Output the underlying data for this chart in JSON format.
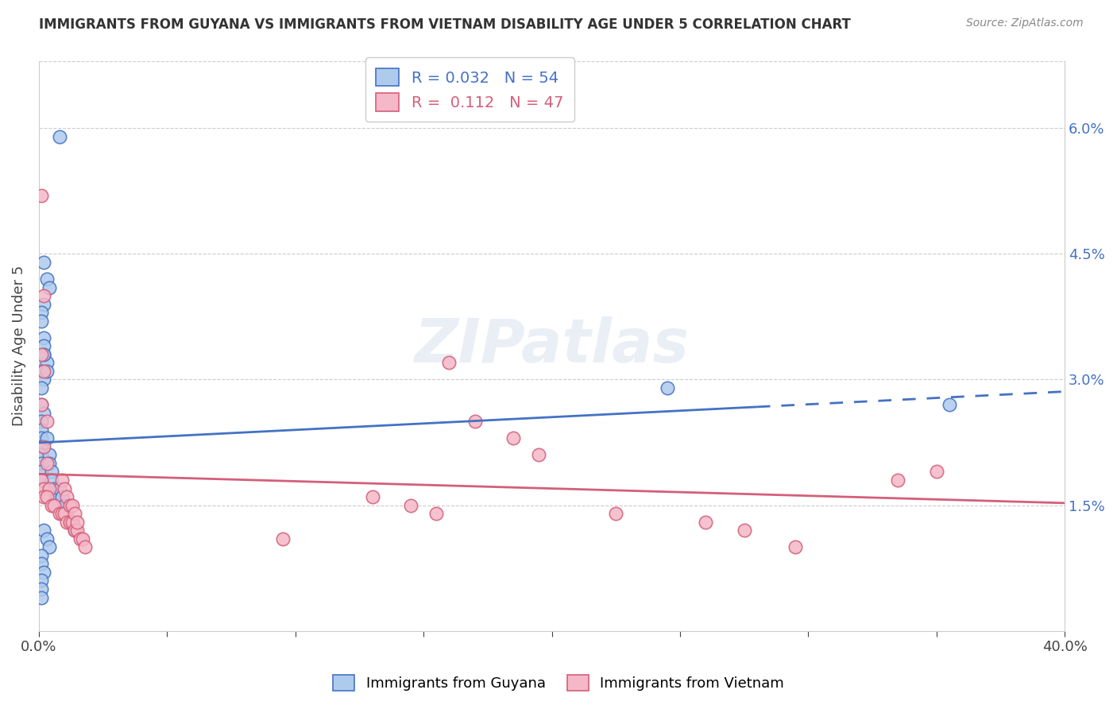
{
  "title": "IMMIGRANTS FROM GUYANA VS IMMIGRANTS FROM VIETNAM DISABILITY AGE UNDER 5 CORRELATION CHART",
  "source": "Source: ZipAtlas.com",
  "ylabel": "Disability Age Under 5",
  "xlim": [
    0.0,
    0.4
  ],
  "ylim": [
    0.0,
    0.068
  ],
  "xticks": [
    0.0,
    0.05,
    0.1,
    0.15,
    0.2,
    0.25,
    0.3,
    0.35,
    0.4
  ],
  "ytick_positions": [
    0.015,
    0.03,
    0.045,
    0.06
  ],
  "ytick_labels": [
    "1.5%",
    "3.0%",
    "4.5%",
    "6.0%"
  ],
  "legend_guyana_r": "0.032",
  "legend_guyana_n": "54",
  "legend_vietnam_r": "0.112",
  "legend_vietnam_n": "47",
  "guyana_color": "#aecbee",
  "guyana_line_color": "#4472c4",
  "vietnam_color": "#f5b8c8",
  "vietnam_line_color": "#d45f7a",
  "watermark": "ZIPatlas",
  "guyana_x": [
    0.008,
    0.002,
    0.003,
    0.004,
    0.002,
    0.001,
    0.001,
    0.002,
    0.002,
    0.003,
    0.001,
    0.002,
    0.001,
    0.001,
    0.002,
    0.001,
    0.001,
    0.001,
    0.001,
    0.001,
    0.001,
    0.001,
    0.001,
    0.001,
    0.001,
    0.002,
    0.002,
    0.003,
    0.003,
    0.004,
    0.004,
    0.005,
    0.005,
    0.006,
    0.007,
    0.007,
    0.008,
    0.009,
    0.01,
    0.011,
    0.012,
    0.013,
    0.014,
    0.002,
    0.003,
    0.004,
    0.001,
    0.001,
    0.002,
    0.001,
    0.001,
    0.001,
    0.245,
    0.355
  ],
  "guyana_y": [
    0.059,
    0.044,
    0.042,
    0.041,
    0.039,
    0.038,
    0.037,
    0.035,
    0.033,
    0.032,
    0.031,
    0.03,
    0.029,
    0.027,
    0.026,
    0.025,
    0.024,
    0.023,
    0.022,
    0.021,
    0.02,
    0.019,
    0.018,
    0.018,
    0.017,
    0.034,
    0.033,
    0.031,
    0.023,
    0.021,
    0.02,
    0.019,
    0.018,
    0.017,
    0.016,
    0.015,
    0.017,
    0.016,
    0.015,
    0.014,
    0.013,
    0.013,
    0.012,
    0.012,
    0.011,
    0.01,
    0.009,
    0.008,
    0.007,
    0.006,
    0.005,
    0.004,
    0.029,
    0.027
  ],
  "vietnam_x": [
    0.001,
    0.002,
    0.001,
    0.002,
    0.001,
    0.003,
    0.002,
    0.003,
    0.001,
    0.002,
    0.004,
    0.002,
    0.003,
    0.005,
    0.006,
    0.008,
    0.009,
    0.01,
    0.011,
    0.012,
    0.013,
    0.014,
    0.015,
    0.016,
    0.017,
    0.018,
    0.009,
    0.01,
    0.011,
    0.012,
    0.013,
    0.014,
    0.015,
    0.16,
    0.17,
    0.185,
    0.195,
    0.13,
    0.145,
    0.155,
    0.225,
    0.26,
    0.275,
    0.295,
    0.335,
    0.35,
    0.095
  ],
  "vietnam_y": [
    0.052,
    0.04,
    0.033,
    0.031,
    0.027,
    0.025,
    0.022,
    0.02,
    0.018,
    0.017,
    0.017,
    0.016,
    0.016,
    0.015,
    0.015,
    0.014,
    0.014,
    0.014,
    0.013,
    0.013,
    0.013,
    0.012,
    0.012,
    0.011,
    0.011,
    0.01,
    0.018,
    0.017,
    0.016,
    0.015,
    0.015,
    0.014,
    0.013,
    0.032,
    0.025,
    0.023,
    0.021,
    0.016,
    0.015,
    0.014,
    0.014,
    0.013,
    0.012,
    0.01,
    0.018,
    0.019,
    0.011
  ]
}
